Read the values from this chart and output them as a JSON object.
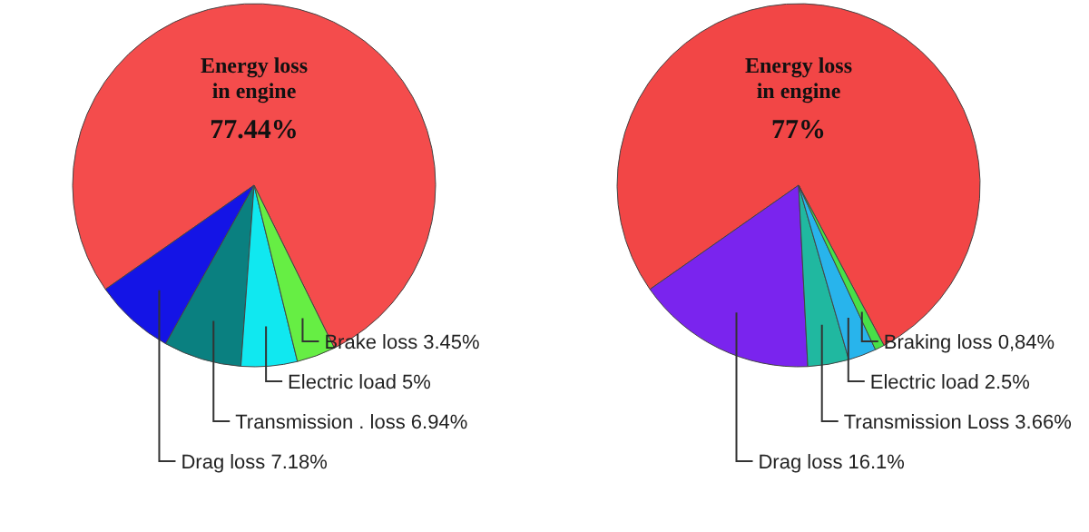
{
  "chart_data": [
    {
      "type": "pie",
      "categories": [
        "Energy loss in engine",
        "Drag loss",
        "Transmission . loss",
        "Electric load",
        "Brake loss"
      ],
      "values": [
        77.44,
        7.18,
        6.94,
        5,
        3.45
      ],
      "colors": [
        "#f44c4c",
        "#1414e6",
        "#0a8080",
        "#10e8f0",
        "#66ee44"
      ],
      "value_labels": [
        "77.44%",
        "7.18%",
        "6.94%",
        "5%",
        "3.45%"
      ]
    },
    {
      "type": "pie",
      "categories": [
        "Energy loss in engine",
        "Drag loss",
        "Transmission  Loss",
        "Electric load",
        "Braking loss"
      ],
      "values": [
        77,
        16.1,
        3.66,
        2.5,
        0.84
      ],
      "colors": [
        "#f24646",
        "#7a24ee",
        "#20b8a0",
        "#28b4ec",
        "#48e048"
      ],
      "value_labels": [
        "77%",
        "16.1%",
        "3.66%",
        "2.5%",
        "0,84%"
      ]
    }
  ]
}
